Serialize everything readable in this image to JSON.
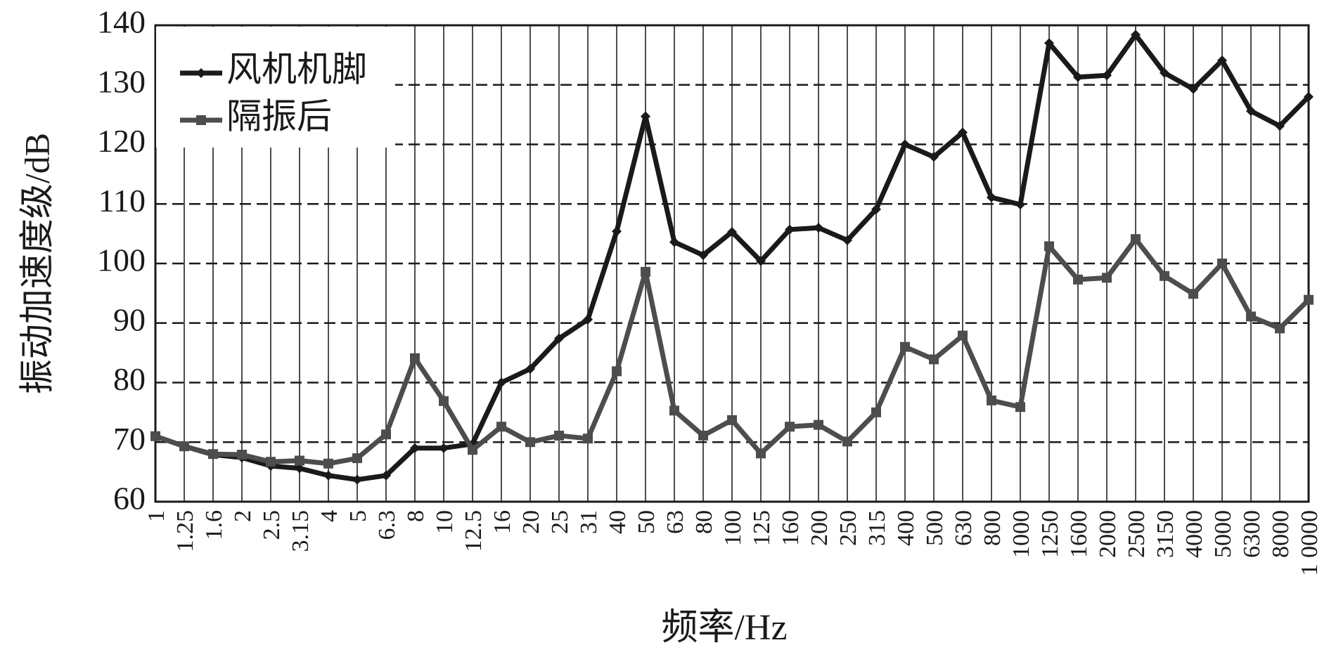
{
  "chart_data": {
    "type": "line",
    "xlabel": "频率/Hz",
    "ylabel": "振动加速度级/dB",
    "categories": [
      "1",
      "1.25",
      "1.6",
      "2",
      "2.5",
      "3.15",
      "4",
      "5",
      "6.3",
      "8",
      "10",
      "12.5",
      "16",
      "20",
      "25",
      "31",
      "40",
      "50",
      "63",
      "80",
      "100",
      "125",
      "160",
      "200",
      "250",
      "315",
      "400",
      "500",
      "630",
      "800",
      "1000",
      "1250",
      "1600",
      "2000",
      "2500",
      "3150",
      "4000",
      "5000",
      "6300",
      "8000",
      "1 0000"
    ],
    "series": [
      {
        "name": "风机机脚",
        "color": "#1a1a1a",
        "marker": "diamond",
        "values": [
          71.0,
          69.3,
          67.9,
          67.4,
          66.0,
          65.6,
          64.4,
          63.7,
          64.4,
          69.0,
          69.0,
          69.7,
          80.0,
          82.3,
          87.4,
          90.6,
          105.4,
          124.7,
          103.6,
          101.4,
          105.3,
          100.4,
          105.7,
          106.0,
          103.9,
          109.1,
          120.0,
          117.9,
          122.0,
          111.1,
          109.9,
          137.0,
          131.3,
          131.6,
          138.4,
          132.0,
          129.3,
          134.1,
          125.6,
          123.1,
          128.0
        ]
      },
      {
        "name": "隔振后",
        "color": "#4d4d4d",
        "marker": "square",
        "values": [
          71.0,
          69.3,
          68.0,
          67.9,
          66.7,
          66.9,
          66.4,
          67.3,
          71.3,
          84.1,
          76.9,
          68.7,
          72.6,
          70.0,
          71.1,
          70.6,
          81.9,
          98.6,
          75.3,
          71.1,
          73.7,
          68.1,
          72.6,
          72.9,
          70.1,
          75.0,
          86.0,
          83.9,
          87.9,
          77.0,
          75.9,
          102.9,
          97.3,
          97.6,
          104.1,
          97.9,
          94.9,
          100.0,
          91.1,
          89.1,
          93.9
        ]
      }
    ],
    "ylim": [
      60,
      140
    ],
    "yticks": [
      60,
      70,
      80,
      90,
      100,
      110,
      120,
      130,
      140
    ],
    "grid": true,
    "legend": "upper left"
  }
}
